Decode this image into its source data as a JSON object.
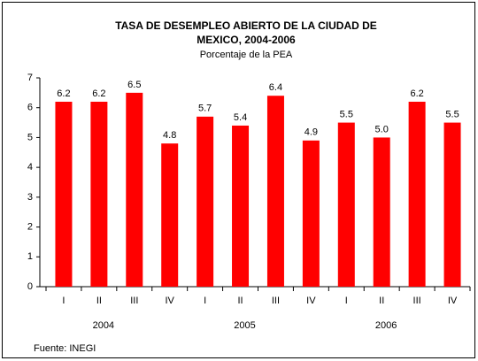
{
  "chart_data": {
    "type": "bar",
    "title": [
      "TASA DE DESEMPLEO ABIERTO DE LA CIUDAD DE",
      "MEXICO, 2004-2006"
    ],
    "subtitle": "Porcentaje de la PEA",
    "categories": [
      "I",
      "II",
      "III",
      "IV",
      "I",
      "II",
      "III",
      "IV",
      "I",
      "II",
      "III",
      "IV"
    ],
    "groups": [
      "2004",
      "2005",
      "2006"
    ],
    "values": [
      6.2,
      6.2,
      6.5,
      4.8,
      5.7,
      5.4,
      6.4,
      4.9,
      5.5,
      5.0,
      6.2,
      5.5
    ],
    "value_labels": [
      "6.2",
      "6.2",
      "6.5",
      "4.8",
      "5.7",
      "5.4",
      "6.4",
      "4.9",
      "5.5",
      "5.0",
      "6.2",
      "5.5"
    ],
    "color": "#ff0000",
    "ylim": [
      0,
      7
    ],
    "yticks": [
      0,
      1,
      2,
      3,
      4,
      5,
      6,
      7
    ],
    "source": "Fuente: INEGI"
  }
}
